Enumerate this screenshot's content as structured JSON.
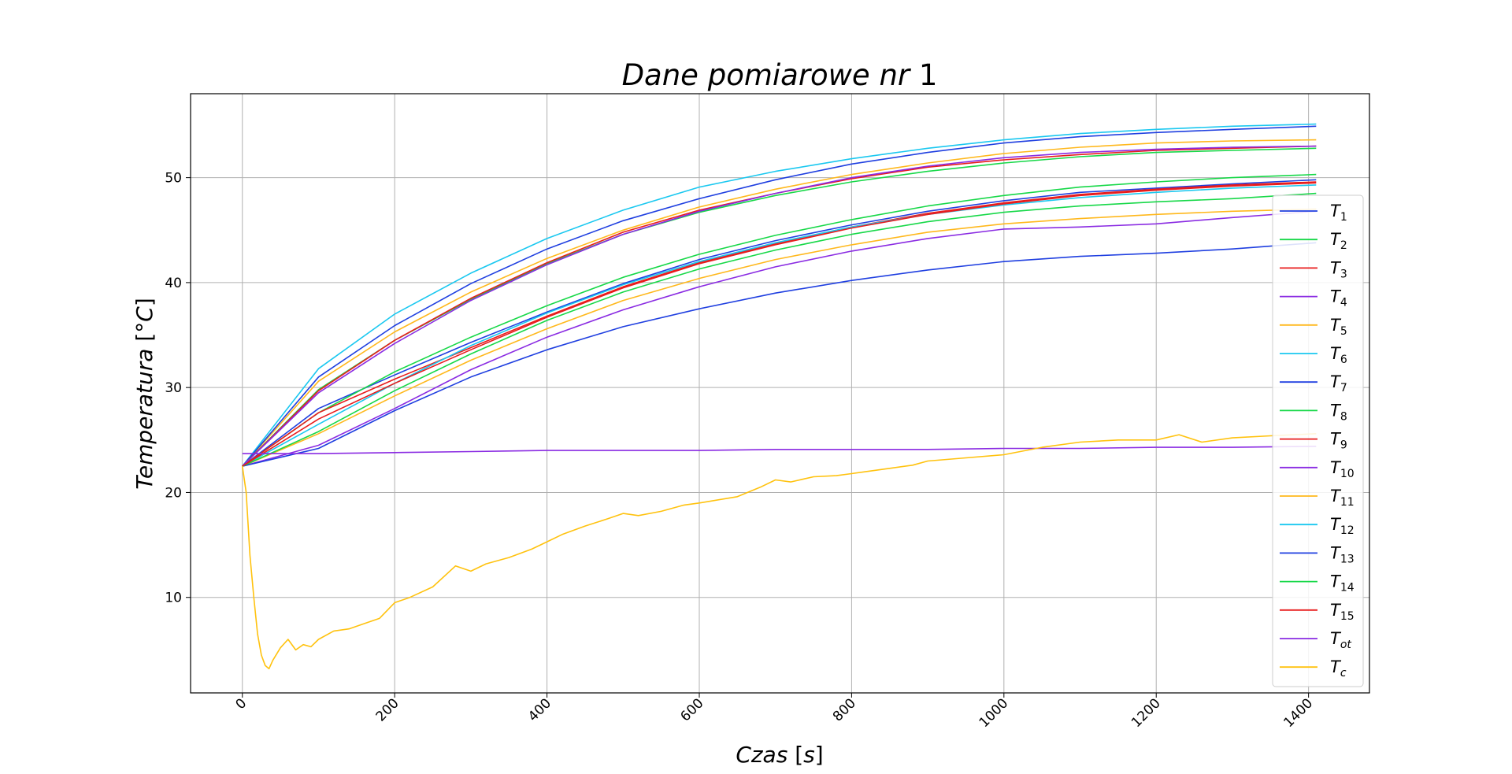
{
  "chart_data": {
    "type": "line",
    "title": "Dane pomiarowe nr 1",
    "title_parts": {
      "italic": "Dane pomiarowe nr",
      "normal": "1"
    },
    "xlabel": "Czas [s]",
    "xlabel_parts": {
      "italic": "Czas",
      "normal": "[",
      "italic2": "s",
      "normal2": "]"
    },
    "ylabel": "Temperatura [°C]",
    "ylabel_parts": {
      "italic": "Temperatura",
      "normal": "[°",
      "italic2": "C",
      "normal2": "]"
    },
    "xlim": [
      -68,
      1480
    ],
    "ylim": [
      0.9,
      58.0
    ],
    "xticks": [
      0,
      200,
      400,
      600,
      800,
      1000,
      1200,
      1400
    ],
    "yticks": [
      10,
      20,
      30,
      40,
      50
    ],
    "grid": true,
    "legend_position": "right",
    "series": [
      {
        "name": "T",
        "sub": "1",
        "color": "#1f3fe0",
        "x": [
          0,
          100,
          200,
          300,
          400,
          500,
          600,
          700,
          800,
          900,
          1000,
          1100,
          1200,
          1300,
          1410
        ],
        "y": [
          22.5,
          28.0,
          31.2,
          34.3,
          37.2,
          39.9,
          42.2,
          44.0,
          45.5,
          46.8,
          47.8,
          48.6,
          49.0,
          49.4,
          49.8
        ]
      },
      {
        "name": "T",
        "sub": "2",
        "color": "#17d848",
        "x": [
          0,
          100,
          200,
          300,
          400,
          500,
          600,
          700,
          800,
          900,
          1000,
          1100,
          1200,
          1300,
          1410
        ],
        "y": [
          22.5,
          27.6,
          31.5,
          34.8,
          37.8,
          40.5,
          42.7,
          44.5,
          46.0,
          47.3,
          48.3,
          49.1,
          49.6,
          50.0,
          50.3
        ]
      },
      {
        "name": "T",
        "sub": "3",
        "color": "#e81c1c",
        "x": [
          0,
          100,
          200,
          300,
          400,
          500,
          600,
          700,
          800,
          900,
          1000,
          1100,
          1200,
          1300,
          1410
        ],
        "y": [
          22.5,
          27.6,
          30.8,
          33.8,
          36.8,
          39.6,
          41.9,
          43.7,
          45.3,
          46.6,
          47.6,
          48.4,
          48.9,
          49.3,
          49.6
        ]
      },
      {
        "name": "T",
        "sub": "4",
        "color": "#8a2be2",
        "x": [
          0,
          100,
          200,
          300,
          400,
          500,
          600,
          700,
          800,
          900,
          1000,
          1100,
          1200,
          1300,
          1410
        ],
        "y": [
          22.5,
          24.5,
          28.0,
          31.7,
          34.8,
          37.4,
          39.6,
          41.5,
          43.0,
          44.2,
          45.1,
          45.3,
          45.6,
          46.2,
          46.8
        ]
      },
      {
        "name": "T",
        "sub": "5",
        "color": "#ffb81c",
        "x": [
          0,
          100,
          200,
          300,
          400,
          500,
          600,
          700,
          800,
          900,
          1000,
          1100,
          1200,
          1300,
          1410
        ],
        "y": [
          22.5,
          30.6,
          35.3,
          39.1,
          42.3,
          45.0,
          47.2,
          48.9,
          50.3,
          51.4,
          52.3,
          52.9,
          53.3,
          53.5,
          53.6
        ]
      },
      {
        "name": "T",
        "sub": "6",
        "color": "#1ac8f0",
        "x": [
          0,
          100,
          200,
          300,
          400,
          500,
          600,
          700,
          800,
          900,
          1000,
          1100,
          1200,
          1300,
          1410
        ],
        "y": [
          22.5,
          31.8,
          37.0,
          40.9,
          44.2,
          46.9,
          49.1,
          50.6,
          51.8,
          52.8,
          53.6,
          54.2,
          54.6,
          54.9,
          55.1
        ]
      },
      {
        "name": "T",
        "sub": "7",
        "color": "#1f3fe0",
        "x": [
          0,
          100,
          200,
          300,
          400,
          500,
          600,
          700,
          800,
          900,
          1000,
          1100,
          1200,
          1300,
          1410
        ],
        "y": [
          22.5,
          31.0,
          35.9,
          39.9,
          43.2,
          45.9,
          48.0,
          49.8,
          51.3,
          52.4,
          53.3,
          53.9,
          54.3,
          54.6,
          54.9
        ]
      },
      {
        "name": "T",
        "sub": "8",
        "color": "#17d848",
        "x": [
          0,
          100,
          200,
          300,
          400,
          500,
          600,
          700,
          800,
          900,
          1000,
          1100,
          1200,
          1300,
          1410
        ],
        "y": [
          22.5,
          29.8,
          34.5,
          38.4,
          41.8,
          44.6,
          46.7,
          48.3,
          49.6,
          50.6,
          51.4,
          52.0,
          52.4,
          52.6,
          52.8
        ]
      },
      {
        "name": "T",
        "sub": "9",
        "color": "#e81c1c",
        "x": [
          0,
          100,
          200,
          300,
          400,
          500,
          600,
          700,
          800,
          900,
          1000,
          1100,
          1200,
          1300,
          1410
        ],
        "y": [
          22.5,
          29.7,
          34.5,
          38.5,
          41.9,
          44.8,
          46.9,
          48.5,
          49.9,
          51.0,
          51.7,
          52.2,
          52.6,
          52.8,
          53.0
        ]
      },
      {
        "name": "T",
        "sub": "10",
        "color": "#8a2be2",
        "x": [
          0,
          100,
          200,
          300,
          400,
          500,
          600,
          700,
          800,
          900,
          1000,
          1100,
          1200,
          1300,
          1410
        ],
        "y": [
          22.5,
          29.5,
          34.2,
          38.3,
          41.7,
          44.6,
          46.8,
          48.5,
          50.0,
          51.1,
          51.9,
          52.4,
          52.7,
          52.9,
          53.0
        ]
      },
      {
        "name": "T",
        "sub": "11",
        "color": "#ffb81c",
        "x": [
          0,
          100,
          200,
          300,
          400,
          500,
          600,
          700,
          800,
          900,
          1000,
          1100,
          1200,
          1300,
          1410
        ],
        "y": [
          22.5,
          25.6,
          29.2,
          32.6,
          35.6,
          38.3,
          40.4,
          42.2,
          43.6,
          44.8,
          45.6,
          46.1,
          46.5,
          46.8,
          47.0
        ]
      },
      {
        "name": "T",
        "sub": "12",
        "color": "#1ac8f0",
        "x": [
          0,
          100,
          200,
          300,
          400,
          500,
          600,
          700,
          800,
          900,
          1000,
          1100,
          1200,
          1300,
          1410
        ],
        "y": [
          22.5,
          26.5,
          30.4,
          34.0,
          37.1,
          39.8,
          42.0,
          43.8,
          45.3,
          46.5,
          47.4,
          48.1,
          48.6,
          49.0,
          49.3
        ]
      },
      {
        "name": "T",
        "sub": "13",
        "color": "#1f3fe0",
        "x": [
          0,
          100,
          200,
          300,
          400,
          500,
          600,
          700,
          800,
          900,
          1000,
          1100,
          1200,
          1300,
          1410
        ],
        "y": [
          22.5,
          24.2,
          27.8,
          31.0,
          33.6,
          35.8,
          37.5,
          39.0,
          40.2,
          41.2,
          42.0,
          42.5,
          42.8,
          43.2,
          43.8
        ]
      },
      {
        "name": "T",
        "sub": "14",
        "color": "#17d848",
        "x": [
          0,
          100,
          200,
          300,
          400,
          500,
          600,
          700,
          800,
          900,
          1000,
          1100,
          1200,
          1300,
          1410
        ],
        "y": [
          22.5,
          25.8,
          29.7,
          33.2,
          36.4,
          39.1,
          41.3,
          43.1,
          44.6,
          45.8,
          46.7,
          47.3,
          47.7,
          48.0,
          48.5
        ]
      },
      {
        "name": "T",
        "sub": "15",
        "color": "#e81c1c",
        "x": [
          0,
          100,
          200,
          300,
          400,
          500,
          600,
          700,
          800,
          900,
          1000,
          1100,
          1200,
          1300,
          1410
        ],
        "y": [
          22.5,
          27.0,
          30.4,
          33.6,
          36.7,
          39.5,
          41.8,
          43.6,
          45.2,
          46.5,
          47.5,
          48.3,
          48.8,
          49.2,
          49.5
        ]
      },
      {
        "name": "T",
        "sub": "ot",
        "color": "#8a2be2",
        "x": [
          0,
          100,
          200,
          300,
          400,
          500,
          600,
          700,
          800,
          900,
          1000,
          1100,
          1200,
          1300,
          1410
        ],
        "y": [
          23.7,
          23.7,
          23.8,
          23.9,
          24.0,
          24.0,
          24.0,
          24.1,
          24.1,
          24.1,
          24.2,
          24.2,
          24.3,
          24.3,
          24.4
        ]
      },
      {
        "name": "T",
        "sub": "c",
        "color": "#ffc20e",
        "x": [
          0,
          5,
          10,
          15,
          20,
          25,
          30,
          35,
          40,
          50,
          60,
          70,
          80,
          90,
          100,
          120,
          140,
          160,
          180,
          200,
          220,
          250,
          280,
          300,
          320,
          350,
          380,
          400,
          420,
          450,
          480,
          500,
          520,
          550,
          580,
          600,
          650,
          680,
          700,
          720,
          750,
          780,
          800,
          820,
          850,
          880,
          900,
          950,
          1000,
          1050,
          1100,
          1150,
          1200,
          1230,
          1260,
          1300,
          1350,
          1410
        ],
        "y": [
          22.5,
          20.0,
          14.0,
          10.0,
          6.5,
          4.5,
          3.5,
          3.2,
          4.0,
          5.2,
          6.0,
          5.0,
          5.5,
          5.3,
          6.0,
          6.8,
          7.0,
          7.5,
          8.0,
          9.5,
          10.0,
          11.0,
          13.0,
          12.5,
          13.2,
          13.8,
          14.6,
          15.3,
          16.0,
          16.8,
          17.5,
          18.0,
          17.8,
          18.2,
          18.8,
          19.0,
          19.6,
          20.5,
          21.2,
          21.0,
          21.5,
          21.6,
          21.8,
          22.0,
          22.3,
          22.6,
          23.0,
          23.3,
          23.6,
          24.3,
          24.8,
          25.0,
          25.0,
          25.5,
          24.8,
          25.2,
          25.4,
          25.6
        ]
      }
    ]
  }
}
